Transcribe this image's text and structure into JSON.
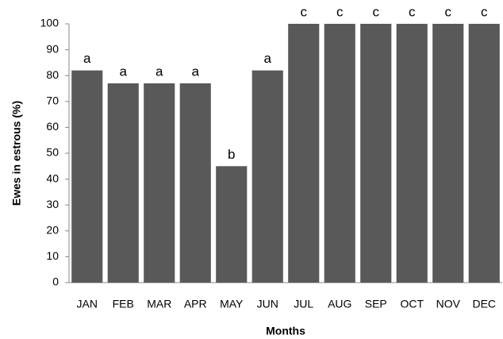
{
  "chart_data": {
    "type": "bar",
    "x_label": "Months",
    "y_label": "Ewes in estrous (%)",
    "categories": [
      "JAN",
      "FEB",
      "MAR",
      "APR",
      "MAY",
      "JUN",
      "JUL",
      "AUG",
      "SEP",
      "OCT",
      "NOV",
      "DEC"
    ],
    "values": [
      82,
      77,
      77,
      77,
      45,
      82,
      100,
      100,
      100,
      100,
      100,
      100
    ],
    "annotations": [
      "a",
      "a",
      "a",
      "a",
      "b",
      "a",
      "c",
      "c",
      "c",
      "c",
      "c",
      "c"
    ],
    "color": "#595959",
    "ylim": [
      0,
      100
    ],
    "yticks": [
      0,
      10,
      20,
      30,
      40,
      50,
      60,
      70,
      80,
      90,
      100
    ],
    "grid": false
  }
}
